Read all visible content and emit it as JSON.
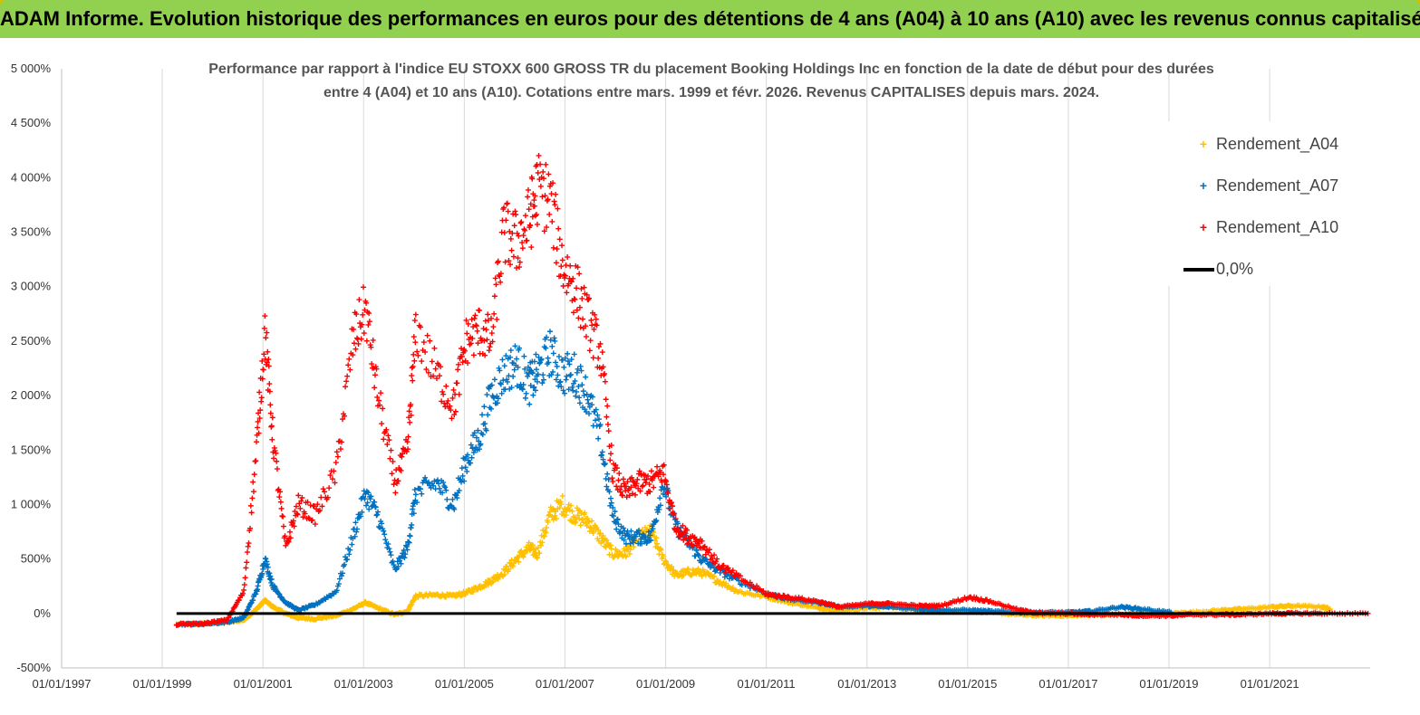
{
  "banner": {
    "title": "ADAM Informe. Evolution historique des performances en euros pour des détentions de 4 ans (A04) à 10 ans (A10) avec les revenus connus capitalisés"
  },
  "chart_data": {
    "type": "scatter",
    "title_line1": "Performance par rapport à l'indice EU STOXX 600 GROSS TR  du placement Booking Holdings Inc en fonction de la date de début pour des durées",
    "title_line2": "entre 4 (A04) et 10 ans (A10). Cotations entre mars. 1999 et févr. 2026. Revenus CAPITALISES depuis mars. 2024.",
    "xlabel": "",
    "ylabel": "",
    "x_range": [
      "01/01/1997",
      "31/12/2022"
    ],
    "ylim": [
      -500,
      5000
    ],
    "y_ticks": [
      "-500%",
      "0%",
      "500%",
      "1 000%",
      "1 500%",
      "2 000%",
      "2 500%",
      "3 000%",
      "3 500%",
      "4 000%",
      "4 500%",
      "5 000%"
    ],
    "x_ticks": [
      "01/01/1997",
      "01/01/1999",
      "01/01/2001",
      "01/01/2003",
      "01/01/2005",
      "01/01/2007",
      "01/01/2009",
      "01/01/2011",
      "01/01/2013",
      "01/01/2015",
      "01/01/2017",
      "01/01/2019",
      "01/01/2021"
    ],
    "grid": "vertical",
    "legend_position": "top-right",
    "series": [
      {
        "name": "Rendement_A04",
        "color": "#ffc000",
        "marker": "plus",
        "points": [
          [
            "1999-04",
            -100
          ],
          [
            "1999-10",
            -95
          ],
          [
            "2000-04",
            -80
          ],
          [
            "2000-08",
            -60
          ],
          [
            "2000-11",
            40
          ],
          [
            "2001-01",
            120
          ],
          [
            "2001-03",
            60
          ],
          [
            "2001-06",
            0
          ],
          [
            "2001-09",
            -40
          ],
          [
            "2002-01",
            -50
          ],
          [
            "2002-06",
            -20
          ],
          [
            "2002-10",
            40
          ],
          [
            "2003-01",
            100
          ],
          [
            "2003-04",
            50
          ],
          [
            "2003-08",
            -10
          ],
          [
            "2003-11",
            20
          ],
          [
            "2004-01",
            160
          ],
          [
            "2004-06",
            170
          ],
          [
            "2004-10",
            160
          ],
          [
            "2005-01",
            190
          ],
          [
            "2005-04",
            240
          ],
          [
            "2005-07",
            300
          ],
          [
            "2005-10",
            380
          ],
          [
            "2006-01",
            500
          ],
          [
            "2006-04",
            600
          ],
          [
            "2006-06",
            550
          ],
          [
            "2006-09",
            900
          ],
          [
            "2006-12",
            1000
          ],
          [
            "2007-03",
            900
          ],
          [
            "2007-06",
            850
          ],
          [
            "2007-09",
            700
          ],
          [
            "2007-12",
            550
          ],
          [
            "2008-03",
            550
          ],
          [
            "2008-06",
            700
          ],
          [
            "2008-09",
            750
          ],
          [
            "2008-12",
            500
          ],
          [
            "2009-03",
            350
          ],
          [
            "2009-06",
            380
          ],
          [
            "2009-09",
            380
          ],
          [
            "2010-01",
            300
          ],
          [
            "2010-06",
            200
          ],
          [
            "2011-01",
            150
          ],
          [
            "2011-06",
            100
          ],
          [
            "2012-01",
            50
          ],
          [
            "2012-06",
            30
          ],
          [
            "2013-01",
            50
          ],
          [
            "2013-06",
            60
          ],
          [
            "2014-01",
            30
          ],
          [
            "2014-06",
            20
          ],
          [
            "2015-01",
            20
          ],
          [
            "2015-06",
            10
          ],
          [
            "2016-01",
            -10
          ],
          [
            "2016-06",
            -20
          ],
          [
            "2017-01",
            -20
          ],
          [
            "2017-06",
            -10
          ],
          [
            "2018-01",
            -10
          ],
          [
            "2018-06",
            0
          ],
          [
            "2019-01",
            0
          ],
          [
            "2019-06",
            10
          ],
          [
            "2020-01",
            30
          ],
          [
            "2020-06",
            40
          ],
          [
            "2021-01",
            60
          ],
          [
            "2021-06",
            70
          ],
          [
            "2022-01",
            60
          ],
          [
            "2022-03",
            40
          ]
        ]
      },
      {
        "name": "Rendement_A07",
        "color": "#0070c0",
        "marker": "plus",
        "points": [
          [
            "1999-04",
            -100
          ],
          [
            "1999-10",
            -95
          ],
          [
            "2000-04",
            -80
          ],
          [
            "2000-08",
            -40
          ],
          [
            "2000-11",
            200
          ],
          [
            "2001-01",
            500
          ],
          [
            "2001-03",
            250
          ],
          [
            "2001-06",
            100
          ],
          [
            "2001-09",
            30
          ],
          [
            "2002-01",
            80
          ],
          [
            "2002-06",
            200
          ],
          [
            "2002-10",
            700
          ],
          [
            "2003-01",
            1100
          ],
          [
            "2003-04",
            900
          ],
          [
            "2003-08",
            400
          ],
          [
            "2003-11",
            600
          ],
          [
            "2004-01",
            1100
          ],
          [
            "2004-06",
            1200
          ],
          [
            "2004-10",
            1000
          ],
          [
            "2005-01",
            1400
          ],
          [
            "2005-04",
            1600
          ],
          [
            "2005-07",
            2000
          ],
          [
            "2005-10",
            2200
          ],
          [
            "2006-01",
            2300
          ],
          [
            "2006-04",
            2100
          ],
          [
            "2006-06",
            2200
          ],
          [
            "2006-09",
            2400
          ],
          [
            "2006-12",
            2200
          ],
          [
            "2007-03",
            2200
          ],
          [
            "2007-06",
            2000
          ],
          [
            "2007-09",
            1600
          ],
          [
            "2007-12",
            900
          ],
          [
            "2008-03",
            700
          ],
          [
            "2008-06",
            700
          ],
          [
            "2008-09",
            700
          ],
          [
            "2008-12",
            1200
          ],
          [
            "2009-03",
            800
          ],
          [
            "2009-06",
            650
          ],
          [
            "2009-09",
            500
          ],
          [
            "2010-01",
            400
          ],
          [
            "2010-06",
            300
          ],
          [
            "2011-01",
            180
          ],
          [
            "2011-06",
            130
          ],
          [
            "2012-01",
            100
          ],
          [
            "2012-06",
            60
          ],
          [
            "2013-01",
            70
          ],
          [
            "2013-06",
            60
          ],
          [
            "2014-01",
            40
          ],
          [
            "2014-06",
            30
          ],
          [
            "2015-01",
            30
          ],
          [
            "2015-06",
            20
          ],
          [
            "2016-01",
            10
          ],
          [
            "2016-06",
            10
          ],
          [
            "2017-01",
            10
          ],
          [
            "2017-06",
            20
          ],
          [
            "2018-01",
            60
          ],
          [
            "2018-06",
            40
          ],
          [
            "2019-01",
            10
          ]
        ]
      },
      {
        "name": "Rendement_A10",
        "color": "#ff0000",
        "marker": "plus",
        "points": [
          [
            "1999-04",
            -100
          ],
          [
            "1999-10",
            -95
          ],
          [
            "2000-04",
            -60
          ],
          [
            "2000-08",
            200
          ],
          [
            "2000-11",
            1500
          ],
          [
            "2001-01",
            2600
          ],
          [
            "2001-03",
            1600
          ],
          [
            "2001-06",
            600
          ],
          [
            "2001-09",
            1000
          ],
          [
            "2002-01",
            900
          ],
          [
            "2002-06",
            1300
          ],
          [
            "2002-10",
            2500
          ],
          [
            "2003-01",
            2800
          ],
          [
            "2003-04",
            2000
          ],
          [
            "2003-08",
            1200
          ],
          [
            "2003-11",
            1500
          ],
          [
            "2004-01",
            2600
          ],
          [
            "2004-06",
            2200
          ],
          [
            "2004-10",
            1900
          ],
          [
            "2005-01",
            2500
          ],
          [
            "2005-04",
            2600
          ],
          [
            "2005-07",
            2500
          ],
          [
            "2005-10",
            3500
          ],
          [
            "2006-01",
            3400
          ],
          [
            "2006-04",
            3600
          ],
          [
            "2006-06",
            3900
          ],
          [
            "2006-09",
            3800
          ],
          [
            "2006-12",
            3200
          ],
          [
            "2007-03",
            3000
          ],
          [
            "2007-06",
            2700
          ],
          [
            "2007-09",
            2400
          ],
          [
            "2007-12",
            1300
          ],
          [
            "2008-03",
            1100
          ],
          [
            "2008-06",
            1200
          ],
          [
            "2008-09",
            1200
          ],
          [
            "2008-12",
            1300
          ],
          [
            "2009-03",
            800
          ],
          [
            "2009-06",
            700
          ],
          [
            "2009-09",
            650
          ],
          [
            "2010-01",
            450
          ],
          [
            "2010-06",
            330
          ],
          [
            "2011-01",
            170
          ],
          [
            "2011-06",
            150
          ],
          [
            "2012-01",
            110
          ],
          [
            "2012-06",
            60
          ],
          [
            "2013-01",
            90
          ],
          [
            "2013-06",
            90
          ],
          [
            "2014-01",
            70
          ],
          [
            "2014-06",
            70
          ],
          [
            "2015-01",
            150
          ],
          [
            "2015-06",
            110
          ],
          [
            "2016-01",
            30
          ],
          [
            "2016-06",
            0
          ],
          [
            "2017-01",
            0
          ],
          [
            "2017-06",
            -10
          ],
          [
            "2018-01",
            -10
          ],
          [
            "2018-06",
            -20
          ],
          [
            "2019-01",
            -20
          ],
          [
            "2019-06",
            -10
          ],
          [
            "2020-01",
            -10
          ],
          [
            "2020-06",
            -10
          ],
          [
            "2021-01",
            0
          ],
          [
            "2021-06",
            0
          ],
          [
            "2022-01",
            0
          ],
          [
            "2022-12",
            0
          ]
        ]
      },
      {
        "name": "0,0%",
        "color": "#000000",
        "marker": "line",
        "points": [
          [
            "1999-04",
            0
          ],
          [
            "2022-12",
            0
          ]
        ]
      }
    ]
  }
}
